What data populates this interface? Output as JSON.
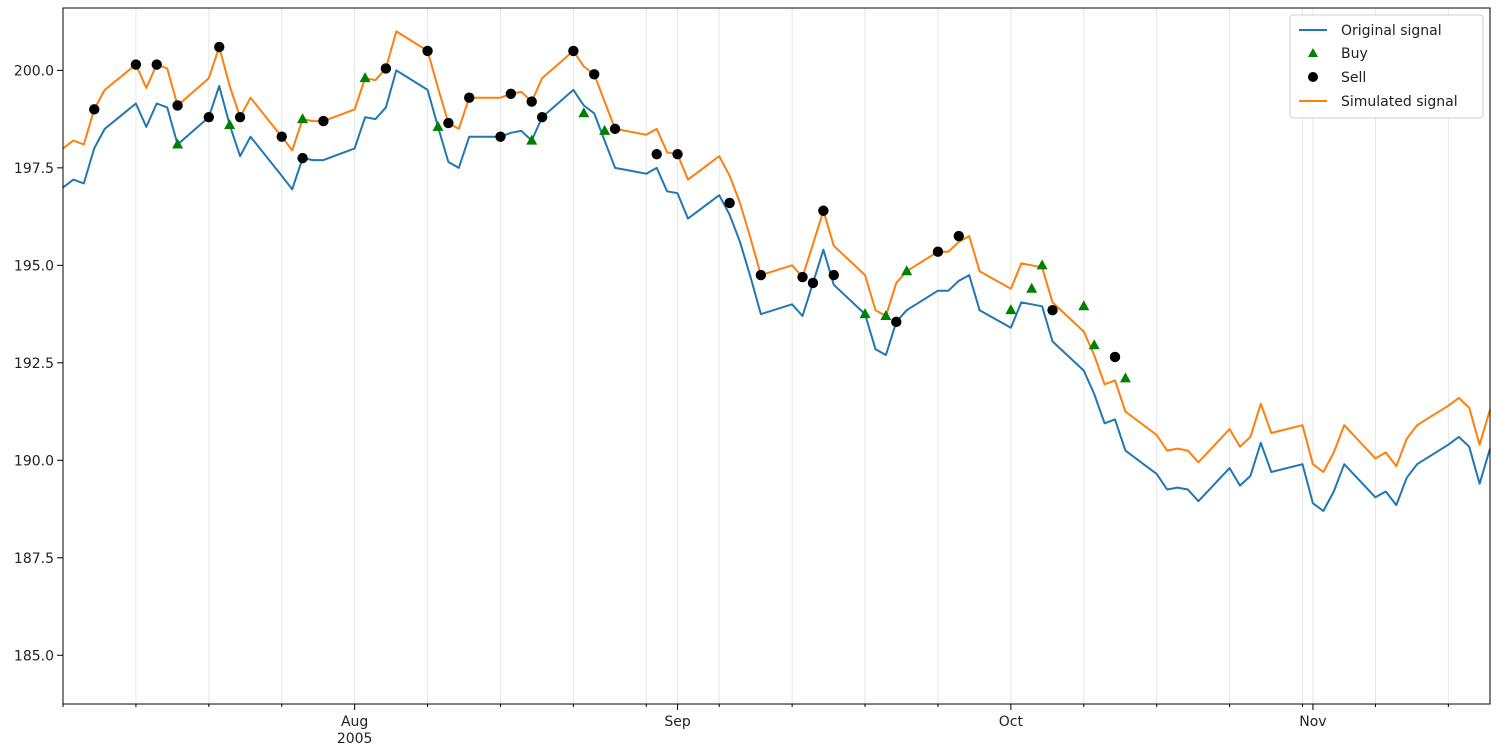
{
  "chart_data": {
    "type": "line",
    "title": "",
    "xlabel": "",
    "ylabel": "",
    "x_range": [
      "2005-07-04",
      "2005-11-18"
    ],
    "ylim": [
      183.75,
      201.6
    ],
    "y_ticks": [
      185.0,
      187.5,
      190.0,
      192.5,
      195.0,
      197.5,
      200.0
    ],
    "y_tick_labels": [
      "185.0",
      "187.5",
      "190.0",
      "192.5",
      "195.0",
      "197.5",
      "200.0"
    ],
    "x_major_ticks": [
      {
        "date": "2005-08-01",
        "label": "Aug",
        "sublabel": "2005"
      },
      {
        "date": "2005-09-01",
        "label": "Sep",
        "sublabel": ""
      },
      {
        "date": "2005-10-03",
        "label": "Oct",
        "sublabel": ""
      },
      {
        "date": "2005-11-01",
        "label": "Nov",
        "sublabel": ""
      }
    ],
    "x_minor_ticks": [
      "2005-07-04",
      "2005-07-11",
      "2005-07-18",
      "2005-07-25",
      "2005-08-08",
      "2005-08-15",
      "2005-08-22",
      "2005-08-29",
      "2005-09-05",
      "2005-09-12",
      "2005-09-19",
      "2005-09-26",
      "2005-10-10",
      "2005-10-17",
      "2005-10-24",
      "2005-10-31",
      "2005-11-07",
      "2005-11-14"
    ],
    "grid": "vertical",
    "legend_position": "top-right",
    "colors": {
      "original": "#1f77b4",
      "simulated": "#ff7f0e",
      "buy": "#008000",
      "sell": "#000000"
    },
    "series": [
      {
        "name": "Original signal",
        "kind": "line",
        "points": [
          [
            "2005-07-04",
            197.0
          ],
          [
            "2005-07-05",
            197.2
          ],
          [
            "2005-07-06",
            197.1
          ],
          [
            "2005-07-07",
            198.0
          ],
          [
            "2005-07-08",
            198.5
          ],
          [
            "2005-07-11",
            199.15
          ],
          [
            "2005-07-12",
            198.55
          ],
          [
            "2005-07-13",
            199.15
          ],
          [
            "2005-07-14",
            199.05
          ],
          [
            "2005-07-15",
            198.1
          ],
          [
            "2005-07-18",
            198.8
          ],
          [
            "2005-07-19",
            199.6
          ],
          [
            "2005-07-20",
            198.6
          ],
          [
            "2005-07-21",
            197.8
          ],
          [
            "2005-07-22",
            198.3
          ],
          [
            "2005-07-25",
            197.3
          ],
          [
            "2005-07-26",
            196.95
          ],
          [
            "2005-07-27",
            197.75
          ],
          [
            "2005-07-28",
            197.7
          ],
          [
            "2005-07-29",
            197.7
          ],
          [
            "2005-08-01",
            198.0
          ],
          [
            "2005-08-02",
            198.8
          ],
          [
            "2005-08-03",
            198.75
          ],
          [
            "2005-08-04",
            199.05
          ],
          [
            "2005-08-05",
            200.0
          ],
          [
            "2005-08-08",
            199.5
          ],
          [
            "2005-08-09",
            198.55
          ],
          [
            "2005-08-10",
            197.65
          ],
          [
            "2005-08-11",
            197.5
          ],
          [
            "2005-08-12",
            198.3
          ],
          [
            "2005-08-15",
            198.3
          ],
          [
            "2005-08-16",
            198.4
          ],
          [
            "2005-08-17",
            198.45
          ],
          [
            "2005-08-18",
            198.2
          ],
          [
            "2005-08-19",
            198.8
          ],
          [
            "2005-08-22",
            199.5
          ],
          [
            "2005-08-23",
            199.1
          ],
          [
            "2005-08-24",
            198.9
          ],
          [
            "2005-08-25",
            198.2
          ],
          [
            "2005-08-26",
            197.5
          ],
          [
            "2005-08-29",
            197.35
          ],
          [
            "2005-08-30",
            197.5
          ],
          [
            "2005-08-31",
            196.9
          ],
          [
            "2005-09-01",
            196.85
          ],
          [
            "2005-09-02",
            196.2
          ],
          [
            "2005-09-05",
            196.8
          ],
          [
            "2005-09-06",
            196.3
          ],
          [
            "2005-09-07",
            195.6
          ],
          [
            "2005-09-08",
            194.7
          ],
          [
            "2005-09-09",
            193.75
          ],
          [
            "2005-09-12",
            194.0
          ],
          [
            "2005-09-13",
            193.7
          ],
          [
            "2005-09-14",
            194.55
          ],
          [
            "2005-09-15",
            195.4
          ],
          [
            "2005-09-16",
            194.5
          ],
          [
            "2005-09-19",
            193.75
          ],
          [
            "2005-09-20",
            192.85
          ],
          [
            "2005-09-21",
            192.7
          ],
          [
            "2005-09-22",
            193.55
          ],
          [
            "2005-09-23",
            193.85
          ],
          [
            "2005-09-26",
            194.35
          ],
          [
            "2005-09-27",
            194.35
          ],
          [
            "2005-09-28",
            194.6
          ],
          [
            "2005-09-29",
            194.75
          ],
          [
            "2005-09-30",
            193.85
          ],
          [
            "2005-10-03",
            193.4
          ],
          [
            "2005-10-04",
            194.05
          ],
          [
            "2005-10-05",
            194.0
          ],
          [
            "2005-10-06",
            193.95
          ],
          [
            "2005-10-07",
            193.05
          ],
          [
            "2005-10-10",
            192.3
          ],
          [
            "2005-10-11",
            191.7
          ],
          [
            "2005-10-12",
            190.95
          ],
          [
            "2005-10-13",
            191.05
          ],
          [
            "2005-10-14",
            190.25
          ],
          [
            "2005-10-17",
            189.65
          ],
          [
            "2005-10-18",
            189.25
          ],
          [
            "2005-10-19",
            189.3
          ],
          [
            "2005-10-20",
            189.25
          ],
          [
            "2005-10-21",
            188.95
          ],
          [
            "2005-10-24",
            189.8
          ],
          [
            "2005-10-25",
            189.35
          ],
          [
            "2005-10-26",
            189.6
          ],
          [
            "2005-10-27",
            190.45
          ],
          [
            "2005-10-28",
            189.7
          ],
          [
            "2005-10-31",
            189.9
          ],
          [
            "2005-11-01",
            188.9
          ],
          [
            "2005-11-02",
            188.7
          ],
          [
            "2005-11-03",
            189.2
          ],
          [
            "2005-11-04",
            189.9
          ],
          [
            "2005-11-07",
            189.05
          ],
          [
            "2005-11-08",
            189.2
          ],
          [
            "2005-11-09",
            188.85
          ],
          [
            "2005-11-10",
            189.55
          ],
          [
            "2005-11-11",
            189.9
          ],
          [
            "2005-11-14",
            190.4
          ],
          [
            "2005-11-15",
            190.6
          ],
          [
            "2005-11-16",
            190.35
          ],
          [
            "2005-11-17",
            189.4
          ],
          [
            "2005-11-18",
            190.3
          ]
        ]
      },
      {
        "name": "Simulated signal",
        "kind": "line",
        "points": [
          [
            "2005-07-04",
            198.0
          ],
          [
            "2005-07-05",
            198.2
          ],
          [
            "2005-07-06",
            198.1
          ],
          [
            "2005-07-07",
            199.0
          ],
          [
            "2005-07-08",
            199.5
          ],
          [
            "2005-07-11",
            200.15
          ],
          [
            "2005-07-12",
            199.55
          ],
          [
            "2005-07-13",
            200.15
          ],
          [
            "2005-07-14",
            200.05
          ],
          [
            "2005-07-15",
            199.1
          ],
          [
            "2005-07-18",
            199.8
          ],
          [
            "2005-07-19",
            200.6
          ],
          [
            "2005-07-20",
            199.6
          ],
          [
            "2005-07-21",
            198.8
          ],
          [
            "2005-07-22",
            199.3
          ],
          [
            "2005-07-25",
            198.3
          ],
          [
            "2005-07-26",
            197.95
          ],
          [
            "2005-07-27",
            198.75
          ],
          [
            "2005-07-28",
            198.7
          ],
          [
            "2005-07-29",
            198.7
          ],
          [
            "2005-08-01",
            199.0
          ],
          [
            "2005-08-02",
            199.8
          ],
          [
            "2005-08-03",
            199.75
          ],
          [
            "2005-08-04",
            200.05
          ],
          [
            "2005-08-05",
            201.0
          ],
          [
            "2005-08-08",
            200.5
          ],
          [
            "2005-08-09",
            199.55
          ],
          [
            "2005-08-10",
            198.65
          ],
          [
            "2005-08-11",
            198.5
          ],
          [
            "2005-08-12",
            199.3
          ],
          [
            "2005-08-15",
            199.3
          ],
          [
            "2005-08-16",
            199.4
          ],
          [
            "2005-08-17",
            199.45
          ],
          [
            "2005-08-18",
            199.2
          ],
          [
            "2005-08-19",
            199.8
          ],
          [
            "2005-08-22",
            200.5
          ],
          [
            "2005-08-23",
            200.1
          ],
          [
            "2005-08-24",
            199.9
          ],
          [
            "2005-08-25",
            199.2
          ],
          [
            "2005-08-26",
            198.5
          ],
          [
            "2005-08-29",
            198.35
          ],
          [
            "2005-08-30",
            198.5
          ],
          [
            "2005-08-31",
            197.9
          ],
          [
            "2005-09-01",
            197.85
          ],
          [
            "2005-09-02",
            197.2
          ],
          [
            "2005-09-05",
            197.8
          ],
          [
            "2005-09-06",
            197.3
          ],
          [
            "2005-09-07",
            196.6
          ],
          [
            "2005-09-08",
            195.7
          ],
          [
            "2005-09-09",
            194.75
          ],
          [
            "2005-09-12",
            195.0
          ],
          [
            "2005-09-13",
            194.7
          ],
          [
            "2005-09-14",
            195.55
          ],
          [
            "2005-09-15",
            196.4
          ],
          [
            "2005-09-16",
            195.5
          ],
          [
            "2005-09-19",
            194.75
          ],
          [
            "2005-09-20",
            193.85
          ],
          [
            "2005-09-21",
            193.7
          ],
          [
            "2005-09-22",
            194.55
          ],
          [
            "2005-09-23",
            194.85
          ],
          [
            "2005-09-26",
            195.35
          ],
          [
            "2005-09-27",
            195.35
          ],
          [
            "2005-09-28",
            195.6
          ],
          [
            "2005-09-29",
            195.75
          ],
          [
            "2005-09-30",
            194.85
          ],
          [
            "2005-10-03",
            194.4
          ],
          [
            "2005-10-04",
            195.05
          ],
          [
            "2005-10-05",
            195.0
          ],
          [
            "2005-10-06",
            194.95
          ],
          [
            "2005-10-07",
            194.05
          ],
          [
            "2005-10-10",
            193.3
          ],
          [
            "2005-10-11",
            192.7
          ],
          [
            "2005-10-12",
            191.95
          ],
          [
            "2005-10-13",
            192.05
          ],
          [
            "2005-10-14",
            191.25
          ],
          [
            "2005-10-17",
            190.65
          ],
          [
            "2005-10-18",
            190.25
          ],
          [
            "2005-10-19",
            190.3
          ],
          [
            "2005-10-20",
            190.25
          ],
          [
            "2005-10-21",
            189.95
          ],
          [
            "2005-10-24",
            190.8
          ],
          [
            "2005-10-25",
            190.35
          ],
          [
            "2005-10-26",
            190.6
          ],
          [
            "2005-10-27",
            191.45
          ],
          [
            "2005-10-28",
            190.7
          ],
          [
            "2005-10-31",
            190.9
          ],
          [
            "2005-11-01",
            189.9
          ],
          [
            "2005-11-02",
            189.7
          ],
          [
            "2005-11-03",
            190.2
          ],
          [
            "2005-11-04",
            190.9
          ],
          [
            "2005-11-07",
            190.05
          ],
          [
            "2005-11-08",
            190.2
          ],
          [
            "2005-11-09",
            189.85
          ],
          [
            "2005-11-10",
            190.55
          ],
          [
            "2005-11-11",
            190.9
          ],
          [
            "2005-11-14",
            191.4
          ],
          [
            "2005-11-15",
            191.6
          ],
          [
            "2005-11-16",
            191.35
          ],
          [
            "2005-11-17",
            190.4
          ],
          [
            "2005-11-18",
            191.3
          ]
        ]
      },
      {
        "name": "Buy",
        "kind": "marker",
        "marker": "triangle",
        "points": [
          [
            "2005-07-15",
            198.1
          ],
          [
            "2005-07-20",
            198.6
          ],
          [
            "2005-07-27",
            198.75
          ],
          [
            "2005-08-02",
            199.8
          ],
          [
            "2005-08-09",
            198.55
          ],
          [
            "2005-08-18",
            198.2
          ],
          [
            "2005-08-23",
            198.9
          ],
          [
            "2005-08-25",
            198.45
          ],
          [
            "2005-09-19",
            193.75
          ],
          [
            "2005-09-21",
            193.7
          ],
          [
            "2005-09-23",
            194.85
          ],
          [
            "2005-10-03",
            193.85
          ],
          [
            "2005-10-05",
            194.4
          ],
          [
            "2005-10-06",
            195.0
          ],
          [
            "2005-10-10",
            193.95
          ],
          [
            "2005-10-11",
            192.95
          ],
          [
            "2005-10-14",
            192.1
          ]
        ]
      },
      {
        "name": "Sell",
        "kind": "marker",
        "marker": "circle",
        "points": [
          [
            "2005-07-07",
            199.0
          ],
          [
            "2005-07-11",
            200.15
          ],
          [
            "2005-07-13",
            200.15
          ],
          [
            "2005-07-15",
            199.1
          ],
          [
            "2005-07-18",
            198.8
          ],
          [
            "2005-07-19",
            200.6
          ],
          [
            "2005-07-21",
            198.8
          ],
          [
            "2005-07-25",
            198.3
          ],
          [
            "2005-07-27",
            197.75
          ],
          [
            "2005-07-29",
            198.7
          ],
          [
            "2005-08-04",
            200.05
          ],
          [
            "2005-08-08",
            200.5
          ],
          [
            "2005-08-10",
            198.65
          ],
          [
            "2005-08-12",
            199.3
          ],
          [
            "2005-08-15",
            198.3
          ],
          [
            "2005-08-16",
            199.4
          ],
          [
            "2005-08-18",
            199.2
          ],
          [
            "2005-08-19",
            198.8
          ],
          [
            "2005-08-22",
            200.5
          ],
          [
            "2005-08-24",
            199.9
          ],
          [
            "2005-08-26",
            198.5
          ],
          [
            "2005-08-30",
            197.85
          ],
          [
            "2005-09-01",
            197.85
          ],
          [
            "2005-09-06",
            196.6
          ],
          [
            "2005-09-09",
            194.75
          ],
          [
            "2005-09-13",
            194.7
          ],
          [
            "2005-09-14",
            194.55
          ],
          [
            "2005-09-15",
            196.4
          ],
          [
            "2005-09-16",
            194.75
          ],
          [
            "2005-09-22",
            193.55
          ],
          [
            "2005-09-26",
            195.35
          ],
          [
            "2005-09-28",
            195.75
          ],
          [
            "2005-10-07",
            193.85
          ],
          [
            "2005-10-13",
            192.65
          ]
        ]
      }
    ]
  }
}
